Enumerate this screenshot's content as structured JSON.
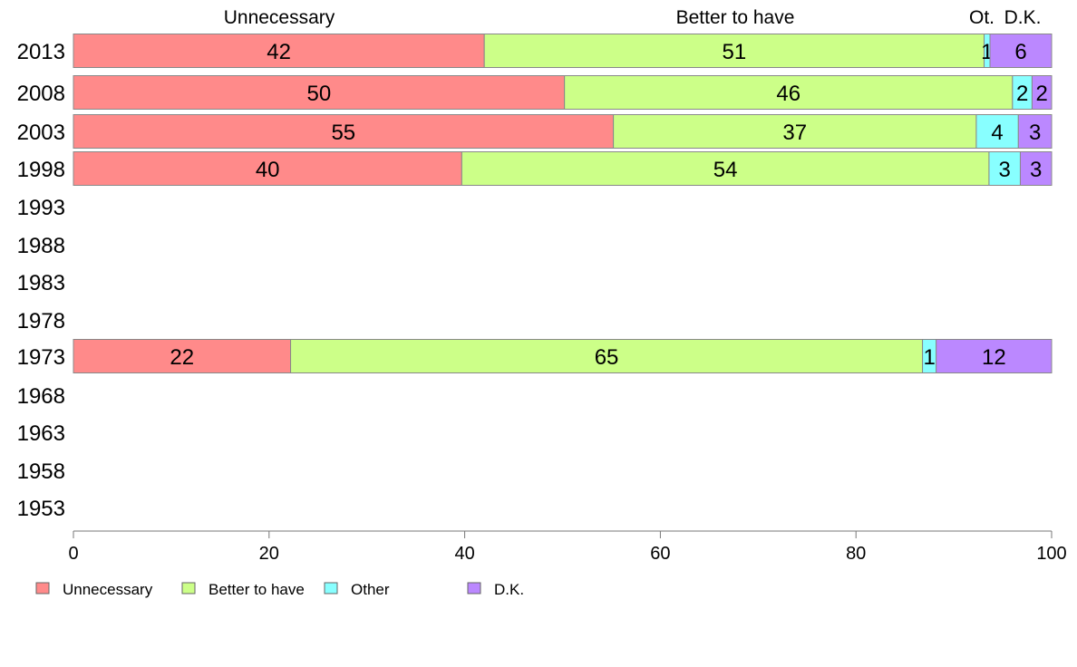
{
  "chart_data": {
    "type": "bar",
    "orientation": "horizontal",
    "stacked": true,
    "categories": [
      "2013",
      "2008",
      "2003",
      "1998",
      "1993",
      "1988",
      "1983",
      "1978",
      "1973",
      "1968",
      "1963",
      "1958",
      "1953"
    ],
    "series": [
      {
        "name": "Unnecessary",
        "color": "#ff8a8a",
        "values": [
          42,
          50,
          55,
          40,
          null,
          null,
          null,
          null,
          22,
          null,
          null,
          null,
          null
        ],
        "exact": [
          42.0,
          50.2,
          55.2,
          39.7,
          null,
          null,
          null,
          null,
          22.2,
          null,
          null,
          null,
          null
        ]
      },
      {
        "name": "Better to have",
        "color": "#ccff88",
        "values": [
          51,
          46,
          37,
          54,
          null,
          null,
          null,
          null,
          65,
          null,
          null,
          null,
          null
        ],
        "exact": [
          51.1,
          45.8,
          37.1,
          53.9,
          null,
          null,
          null,
          null,
          64.6,
          null,
          null,
          null,
          null
        ]
      },
      {
        "name": "Other",
        "color": "#88ffff",
        "values": [
          1,
          2,
          4,
          3,
          null,
          null,
          null,
          null,
          1,
          null,
          null,
          null,
          null
        ],
        "exact": [
          0.6,
          2.0,
          4.3,
          3.2,
          null,
          null,
          null,
          null,
          1.4,
          null,
          null,
          null,
          null
        ]
      },
      {
        "name": "D.K.",
        "color": "#bb88ff",
        "values": [
          6,
          2,
          3,
          3,
          null,
          null,
          null,
          null,
          12,
          null,
          null,
          null,
          null
        ],
        "exact": [
          6.3,
          2.0,
          3.4,
          3.2,
          null,
          null,
          null,
          null,
          11.8,
          null,
          null,
          null,
          null
        ]
      }
    ],
    "top_labels": [
      "Unnecessary",
      "Better to have",
      "Ot.",
      "D.K."
    ],
    "xlim": [
      0,
      100
    ],
    "xticks": [
      "0",
      "20",
      "40",
      "60",
      "80",
      "100"
    ],
    "grid": false,
    "legend_position": "bottom-left"
  }
}
